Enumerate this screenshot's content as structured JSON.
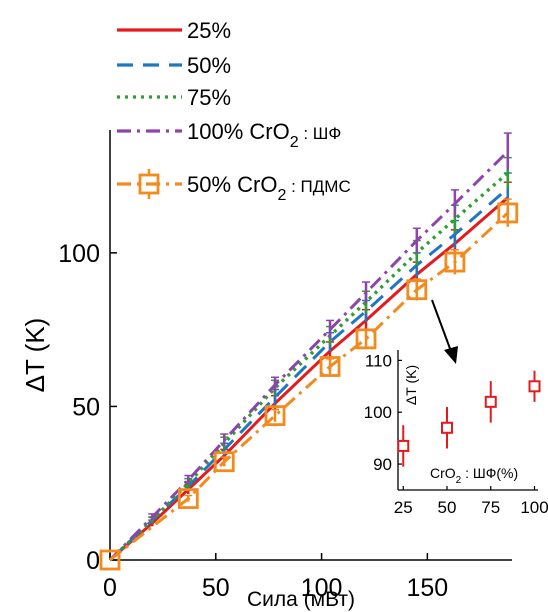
{
  "chart_data": [
    {
      "type": "line",
      "title": "",
      "xlabel": "Сила (мВт)",
      "ylabel": "ΔT (K)",
      "xlim": [
        0,
        190
      ],
      "ylim": [
        0,
        140
      ],
      "x_ticks": [
        "0",
        "50",
        "100",
        "150"
      ],
      "y_ticks": [
        "0",
        "50",
        "100"
      ],
      "grid": false,
      "legend_position": "top-left",
      "series": [
        {
          "name": "25%",
          "color": "#e41a1c",
          "style": "solid",
          "x": [
            0,
            20,
            37,
            54,
            78,
            104,
            121,
            145,
            163,
            188
          ],
          "y": [
            0,
            12,
            23,
            34,
            51,
            68,
            78,
            93,
            103,
            118
          ],
          "err": [
            0,
            1,
            1.5,
            2,
            2.5,
            3,
            3.5,
            4,
            4.5,
            5
          ]
        },
        {
          "name": "50%",
          "color": "#1f77c4",
          "style": "dashed",
          "x": [
            0,
            20,
            37,
            54,
            78,
            104,
            121,
            145,
            163,
            188
          ],
          "y": [
            0,
            13,
            24,
            36,
            53,
            71,
            81,
            96,
            106,
            121
          ],
          "err": [
            0,
            1,
            1.5,
            2,
            2.5,
            3,
            3.5,
            4,
            4.5,
            5
          ]
        },
        {
          "name": "75%",
          "color": "#2ca02c",
          "style": "dotted",
          "x": [
            0,
            20,
            37,
            54,
            78,
            104,
            121,
            145,
            163,
            188
          ],
          "y": [
            0,
            13,
            25,
            38,
            56,
            73,
            84,
            100,
            111,
            126
          ],
          "err": [
            0,
            1,
            1.5,
            2,
            2.5,
            3,
            3.5,
            4,
            4.5,
            5
          ]
        },
        {
          "name": "100% CrO",
          "name_sub": "2",
          "name_suffix": " : ШФ",
          "color": "#8e44ad",
          "style": "dashdot",
          "x": [
            0,
            20,
            37,
            54,
            78,
            104,
            121,
            145,
            163,
            188
          ],
          "y": [
            0,
            14,
            26,
            39,
            57,
            75,
            87,
            104,
            116,
            133
          ],
          "err": [
            0,
            1,
            1.5,
            2,
            2.5,
            3,
            3.5,
            4,
            4.5,
            6
          ]
        },
        {
          "name": "50% CrO",
          "name_sub": "2",
          "name_suffix": " : ПДМС",
          "color": "#f28a1e",
          "style": "dashdot",
          "marker": "square",
          "x": [
            0,
            37,
            54,
            78,
            104,
            121,
            145,
            163,
            188
          ],
          "y": [
            0,
            20,
            32,
            47,
            63,
            72,
            88,
            97,
            113
          ],
          "err": [
            0,
            1,
            1.5,
            2,
            2.5,
            3,
            3.5,
            4,
            4.5
          ]
        }
      ]
    },
    {
      "type": "scatter",
      "title": "",
      "xlabel": "CrO",
      "xlabel_sub": "2",
      "xlabel_suffix": " : ШФ(%)",
      "ylabel": "ΔT (K)",
      "xlim": [
        22,
        102
      ],
      "ylim": [
        85,
        112
      ],
      "x_ticks": [
        "25",
        "50",
        "75",
        "100"
      ],
      "y_ticks": [
        "90",
        "100",
        "110"
      ],
      "color": "#e41a1c",
      "marker": "square",
      "x": [
        25,
        50,
        75,
        100
      ],
      "y": [
        93.5,
        97,
        102,
        105
      ],
      "err": [
        4,
        4,
        4,
        3
      ]
    }
  ]
}
